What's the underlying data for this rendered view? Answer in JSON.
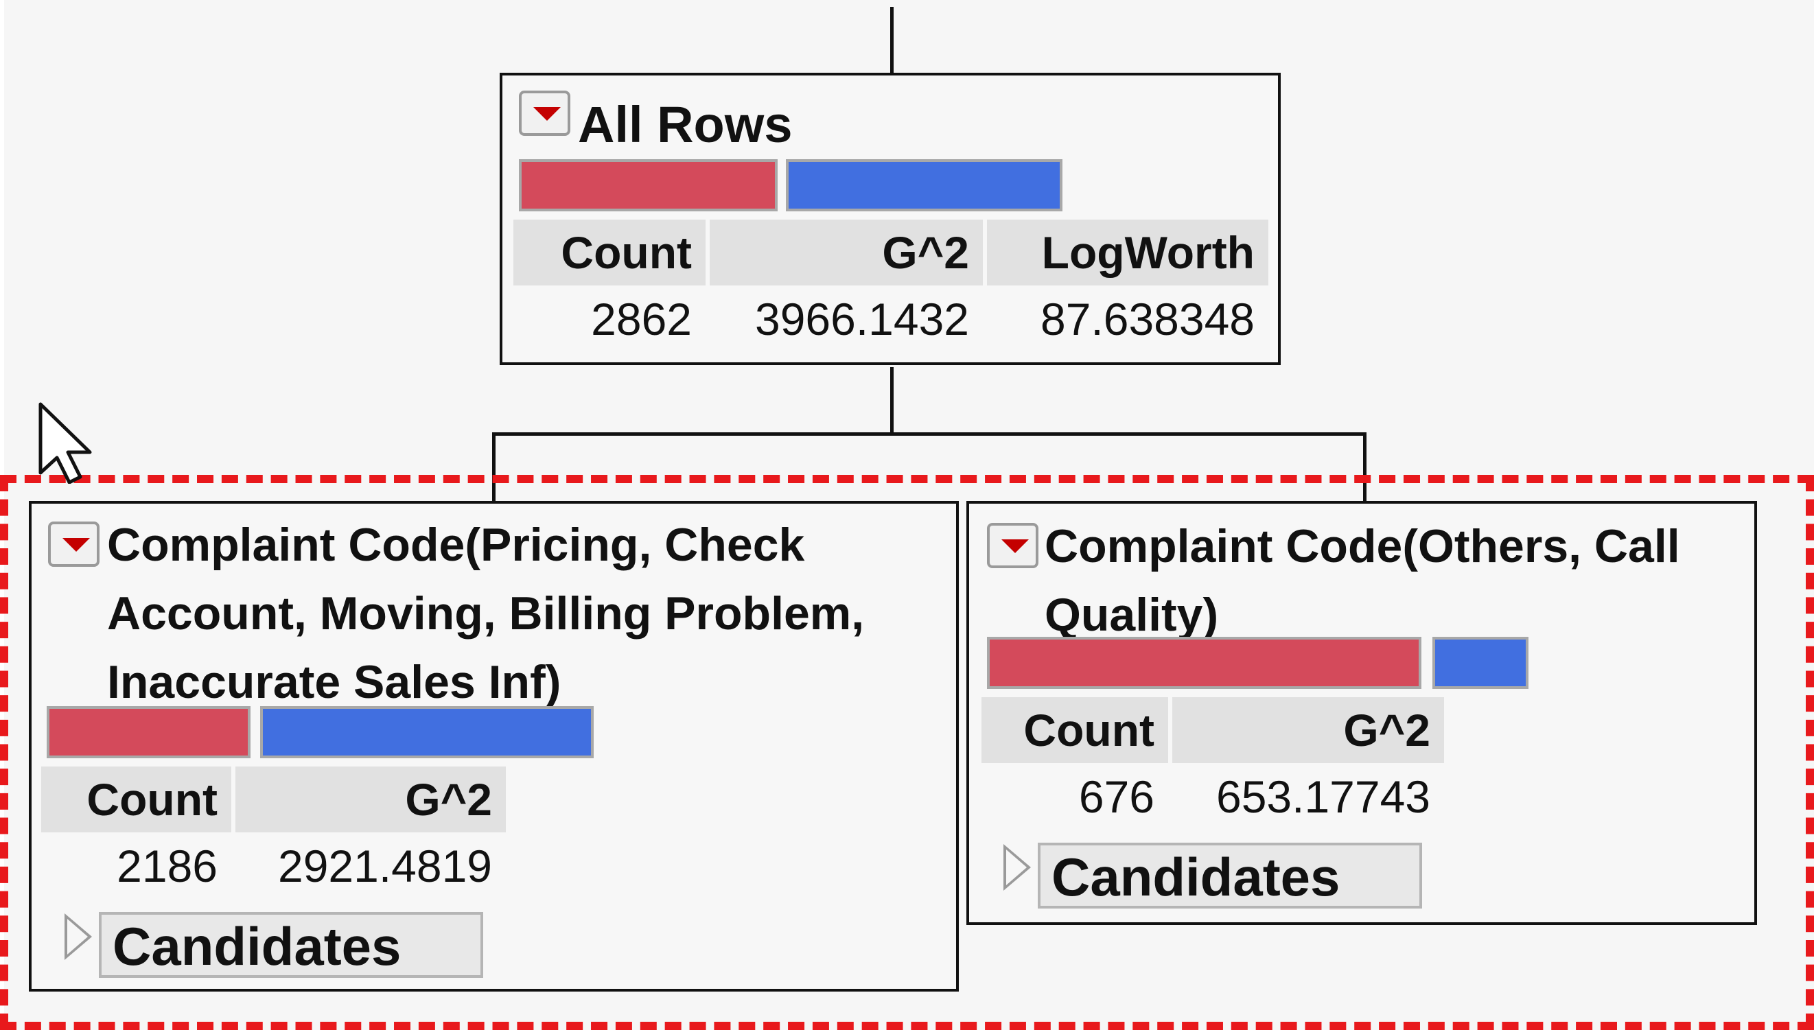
{
  "colors": {
    "bar_red": "#d44a5b",
    "bar_blue": "#416fe0",
    "highlight_dashed": "#e8191c"
  },
  "root": {
    "title": "All Rows",
    "headers": {
      "count": "Count",
      "g2": "G^2",
      "logworth": "LogWorth"
    },
    "values": {
      "count": "2862",
      "g2": "3966.1432",
      "logworth": "87.638348"
    },
    "bar_proportions": {
      "red": 0.48,
      "blue": 0.52
    }
  },
  "left_child": {
    "title": "Complaint Code(Pricing, Check Account, Moving, Billing Problem, Inaccurate Sales Inf)",
    "headers": {
      "count": "Count",
      "g2": "G^2"
    },
    "values": {
      "count": "2186",
      "g2": "2921.4819"
    },
    "candidates_label": "Candidates",
    "bar_proportions": {
      "red": 0.37,
      "blue": 0.63
    }
  },
  "right_child": {
    "title": "Complaint Code(Others, Call Quality)",
    "headers": {
      "count": "Count",
      "g2": "G^2"
    },
    "values": {
      "count": "676",
      "g2": "653.17743"
    },
    "candidates_label": "Candidates",
    "bar_proportions": {
      "red": 0.81,
      "blue": 0.19
    }
  }
}
